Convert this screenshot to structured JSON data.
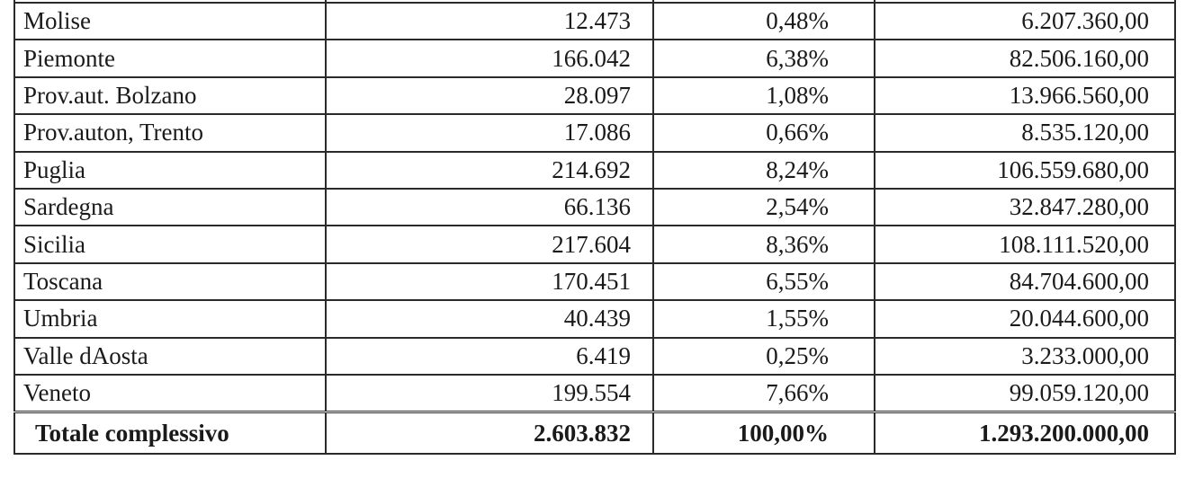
{
  "rows": [
    {
      "region": "Molise",
      "count": "12.473",
      "pct": "0,48%",
      "amount": "6.207.360,00"
    },
    {
      "region": "Piemonte",
      "count": "166.042",
      "pct": "6,38%",
      "amount": "82.506.160,00"
    },
    {
      "region": "Prov.aut. Bolzano",
      "count": "28.097",
      "pct": "1,08%",
      "amount": "13.966.560,00"
    },
    {
      "region": "Prov.auton, Trento",
      "count": "17.086",
      "pct": "0,66%",
      "amount": "8.535.120,00"
    },
    {
      "region": "Puglia",
      "count": "214.692",
      "pct": "8,24%",
      "amount": "106.559.680,00"
    },
    {
      "region": "Sardegna",
      "count": "66.136",
      "pct": "2,54%",
      "amount": "32.847.280,00"
    },
    {
      "region": "Sicilia",
      "count": "217.604",
      "pct": "8,36%",
      "amount": "108.111.520,00"
    },
    {
      "region": "Toscana",
      "count": "170.451",
      "pct": "6,55%",
      "amount": "84.704.600,00"
    },
    {
      "region": "Umbria",
      "count": "40.439",
      "pct": "1,55%",
      "amount": "20.044.600,00"
    },
    {
      "region": "Valle dAosta",
      "count": "6.419",
      "pct": "0,25%",
      "amount": "3.233.000,00"
    },
    {
      "region": "Veneto",
      "count": "199.554",
      "pct": "7,66%",
      "amount": "99.059.120,00"
    }
  ],
  "total": {
    "label": "Totale complessivo",
    "count": "2.603.832",
    "pct": "100,00%",
    "amount": "1.293.200.000,00"
  }
}
